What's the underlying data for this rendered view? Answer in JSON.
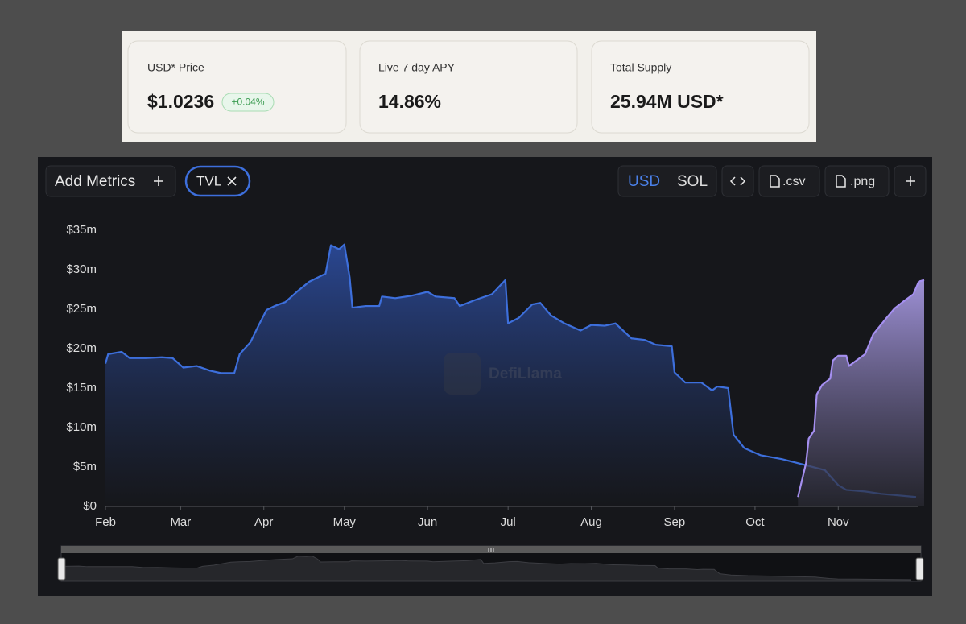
{
  "cards": [
    {
      "label": "USD* Price",
      "value": "$1.0236",
      "change": "+0.04%"
    },
    {
      "label": "Live 7 day APY",
      "value": "14.86%"
    },
    {
      "label": "Total Supply",
      "value": "25.94M USD*"
    }
  ],
  "toolbar": {
    "add_metrics": "Add Metrics",
    "currencies": [
      "USD",
      "SOL"
    ],
    "exports": [
      ".csv",
      ".png"
    ]
  },
  "watermark": "DefiLlama",
  "chart_data": {
    "type": "area",
    "xlim": [
      0,
      305
    ],
    "xticks": [
      {
        "value": 0,
        "label": "Feb"
      },
      {
        "value": 28,
        "label": "Mar"
      },
      {
        "value": 59,
        "label": "Apr"
      },
      {
        "value": 89,
        "label": "May"
      },
      {
        "value": 120,
        "label": "Jun"
      },
      {
        "value": 150,
        "label": "Jul"
      },
      {
        "value": 181,
        "label": "Aug"
      },
      {
        "value": 212,
        "label": "Sep"
      },
      {
        "value": 242,
        "label": "Oct"
      },
      {
        "value": 273,
        "label": "Nov"
      }
    ],
    "ylim": [
      0,
      35
    ],
    "yticks": [
      {
        "value": 0,
        "label": "$0"
      },
      {
        "value": 5,
        "label": "$5m"
      },
      {
        "value": 10,
        "label": "$10m"
      },
      {
        "value": 15,
        "label": "$15m"
      },
      {
        "value": 20,
        "label": "$20m"
      },
      {
        "value": 25,
        "label": "$25m"
      },
      {
        "value": 30,
        "label": "$30m"
      },
      {
        "value": 35,
        "label": "$35m"
      }
    ],
    "grid": false,
    "series": [
      {
        "name": "TVL",
        "color": "#3d6fdc",
        "x": [
          0,
          1,
          6,
          9,
          15,
          21,
          25,
          29,
          34,
          39,
          43,
          48,
          50,
          54,
          57,
          60,
          63,
          67,
          72,
          76,
          82,
          84,
          87,
          89,
          91,
          92,
          97,
          102,
          103,
          108,
          114,
          120,
          123,
          130,
          132,
          138,
          144,
          149,
          150,
          154,
          159,
          162,
          166,
          171,
          177,
          181,
          186,
          190,
          196,
          201,
          205,
          211,
          212,
          216,
          222,
          226,
          228,
          232,
          234,
          238,
          244,
          252,
          259,
          268,
          273,
          276,
          283,
          289,
          302
        ],
        "values": [
          18.1,
          19.3,
          19.6,
          18.8,
          18.8,
          18.9,
          18.8,
          17.6,
          17.8,
          17.2,
          16.9,
          16.9,
          19.3,
          20.8,
          22.9,
          24.9,
          25.4,
          25.9,
          27.4,
          28.5,
          29.5,
          33.1,
          32.6,
          33.2,
          29.0,
          25.2,
          25.4,
          25.4,
          26.6,
          26.4,
          26.7,
          27.2,
          26.6,
          26.4,
          25.4,
          26.2,
          26.9,
          28.7,
          23.2,
          23.9,
          25.6,
          25.8,
          24.2,
          23.2,
          22.3,
          23.0,
          22.9,
          23.2,
          21.3,
          21.1,
          20.5,
          20.3,
          17.0,
          15.7,
          15.7,
          14.7,
          15.2,
          15.0,
          9.1,
          7.4,
          6.5,
          6.0,
          5.4,
          4.6,
          2.7,
          2.1,
          1.9,
          1.6,
          1.2
        ]
      },
      {
        "color": "#a58ff0",
        "x": [
          258,
          261,
          262,
          264,
          265,
          267,
          270,
          271,
          273,
          276,
          277,
          279,
          283,
          286,
          291,
          294,
          297,
          301,
          303,
          305
        ],
        "values": [
          1.2,
          5.5,
          8.6,
          9.6,
          14.2,
          15.4,
          16.2,
          18.5,
          19.1,
          19.1,
          17.8,
          18.3,
          19.3,
          21.8,
          23.9,
          25.1,
          25.9,
          26.9,
          28.5,
          28.7
        ]
      }
    ]
  }
}
